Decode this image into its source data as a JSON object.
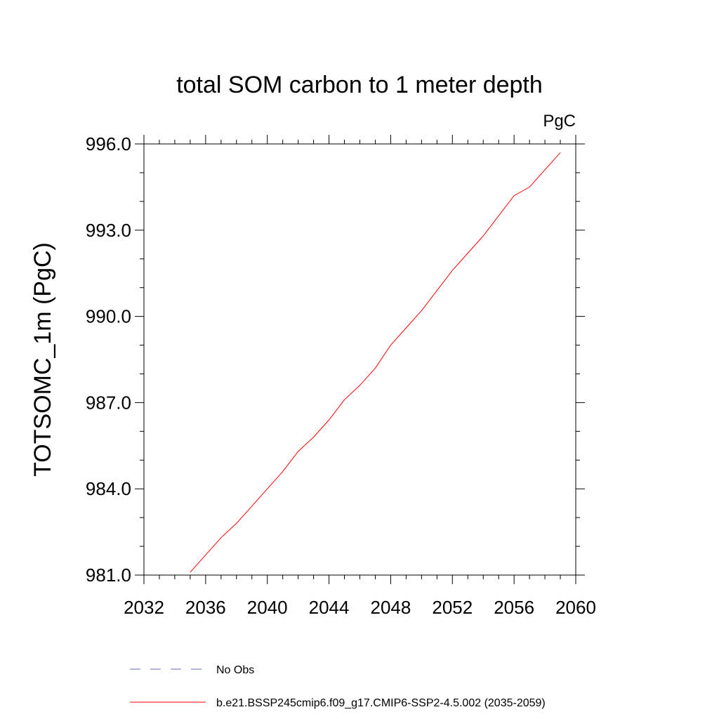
{
  "chart_data": {
    "type": "line",
    "title": "total SOM carbon to 1 meter depth",
    "units_label": "PgC",
    "ylabel": "TOTSOMC_1m  (PgC)",
    "xlabel": "",
    "xlim": [
      2032,
      2060
    ],
    "ylim": [
      981.0,
      996.0
    ],
    "x_ticks": [
      "2032",
      "2036",
      "2040",
      "2044",
      "2048",
      "2052",
      "2056",
      "2060"
    ],
    "x_tick_values": [
      2032,
      2036,
      2040,
      2044,
      2048,
      2052,
      2056,
      2060
    ],
    "y_ticks": [
      "981.0",
      "984.0",
      "987.0",
      "990.0",
      "993.0",
      "996.0"
    ],
    "y_tick_values": [
      981,
      984,
      987,
      990,
      993,
      996
    ],
    "grid": false,
    "legend_position": "bottom",
    "legend": [
      {
        "name": "No Obs",
        "color": "#6a6ab4",
        "style": "dashed"
      },
      {
        "name": "b.e21.BSSP245cmip6.f09_g17.CMIP6-SSP2-4.5.002 (2035-2059)",
        "color": "#ff0000",
        "style": "solid"
      }
    ],
    "series": [
      {
        "name": "b.e21.BSSP245cmip6.f09_g17.CMIP6-SSP2-4.5.002 (2035-2059)",
        "color": "#ff0000",
        "x": [
          2035,
          2036,
          2037,
          2038,
          2039,
          2040,
          2041,
          2042,
          2043,
          2044,
          2045,
          2046,
          2047,
          2048,
          2049,
          2050,
          2051,
          2052,
          2053,
          2054,
          2055,
          2056,
          2057,
          2058,
          2059
        ],
        "y": [
          981.1,
          981.7,
          982.3,
          982.8,
          983.4,
          984.0,
          984.6,
          985.3,
          985.8,
          986.4,
          987.1,
          987.6,
          988.2,
          989.0,
          989.6,
          990.2,
          990.9,
          991.6,
          992.2,
          992.8,
          993.5,
          994.2,
          994.5,
          995.1,
          995.7
        ]
      }
    ]
  }
}
